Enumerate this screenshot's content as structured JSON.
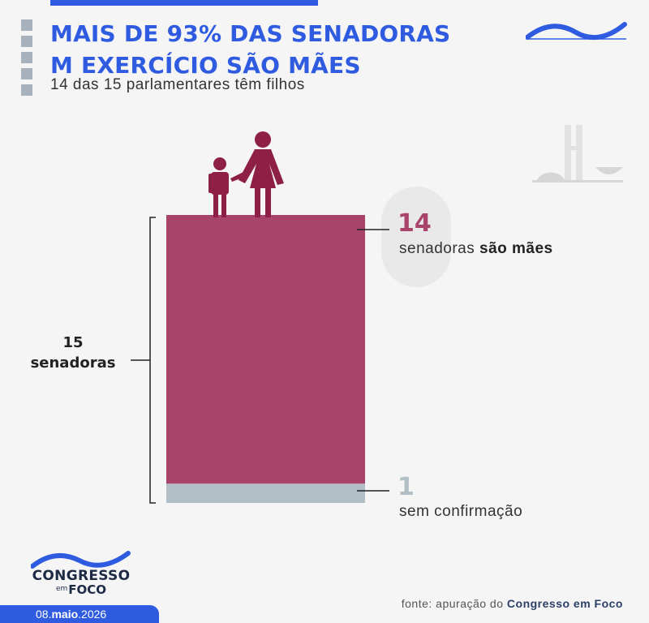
{
  "header": {
    "title_line1": "MAIS DE 93% DAS SENADORAS",
    "title_line2": "M EXERCÍCIO SÃO MÃES",
    "subtitle": "14 das 15 parlamentares têm filhos"
  },
  "chart_data": {
    "type": "bar",
    "orientation": "vertical-stacked",
    "total": 15,
    "total_label_line1": "15",
    "total_label_line2": "senadoras",
    "segments": [
      {
        "value": 14,
        "value_label": "14",
        "label_prefix": "senadoras ",
        "label_bold": "são mães",
        "color": "#a8446a"
      },
      {
        "value": 1,
        "value_label": "1",
        "label_prefix": "sem confirmação",
        "label_bold": "",
        "color": "#b2bec6"
      }
    ],
    "icon": "mother-and-child-icon"
  },
  "footer": {
    "logo_line1": "CONGRESSO",
    "logo_em": "em",
    "logo_line2": "FOCO",
    "date_prefix": "08.",
    "date_bold": "maio",
    "date_suffix": ".2026",
    "source_prefix": "fonte: apuração do ",
    "source_bold": "Congresso em Foco"
  },
  "colors": {
    "accent": "#2f5be0",
    "mothers": "#a8446a",
    "unconfirmed": "#b2bec6",
    "icon": "#8e1f45"
  }
}
